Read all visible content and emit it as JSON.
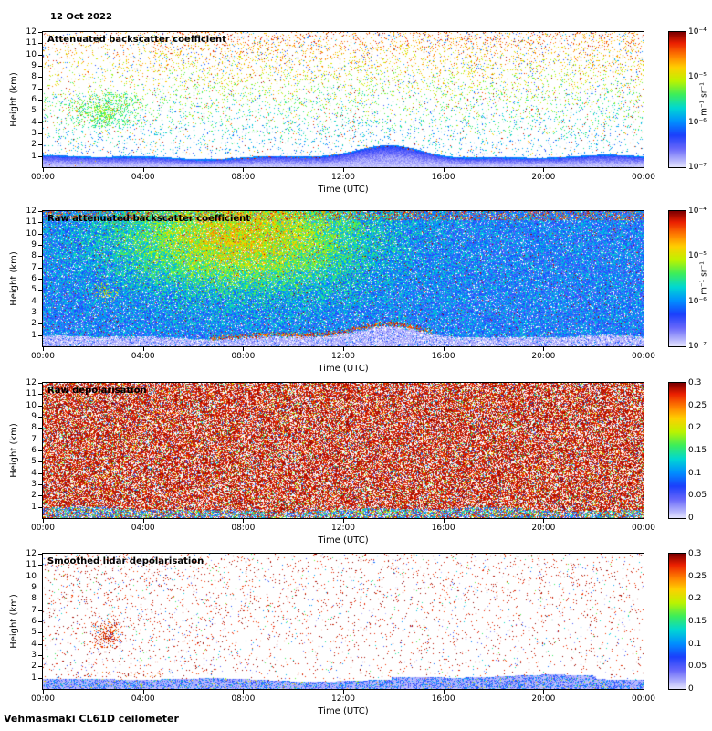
{
  "page": {
    "date": "12 Oct 2022",
    "footer": "Vehmasmaki CL61D ceilometer"
  },
  "chart_data": [
    {
      "type": "heatmap",
      "render_mode": "backscatter",
      "seed": 101,
      "title": "Attenuated backscatter coefficient",
      "xlabel": "Time (UTC)",
      "ylabel": "Height (km)",
      "xlim_hours": [
        0,
        24
      ],
      "ylim_km": [
        0,
        12
      ],
      "x_tick_hours": [
        0,
        4,
        8,
        12,
        16,
        20,
        24
      ],
      "x_tick_labels": [
        "00:00",
        "04:00",
        "08:00",
        "12:00",
        "16:00",
        "20:00",
        "00:00"
      ],
      "y_ticks": [
        1,
        2,
        3,
        4,
        5,
        6,
        7,
        8,
        9,
        10,
        11,
        12
      ],
      "grid": false,
      "colormap": "jet-pale-low",
      "colorbar": {
        "scale": "log",
        "min": 1e-07,
        "max": 0.0001,
        "tick_labels": [
          "10⁻⁴",
          "10⁻⁵",
          "10⁻⁶",
          "10⁻⁷"
        ],
        "unit": "m⁻¹ sr⁻¹"
      },
      "features": [
        "dense blue aerosol layer below ~1 km all day, layer top rising to ~2 km around 13:00-15:00",
        "red/orange speckle along the layer top from ~07:00 to 15:00",
        "green cloud/plume cluster 02:00-03:00 at 4-6 km",
        "sparse warm-coloured noise speckle aloft, density and value increasing with height"
      ]
    },
    {
      "type": "heatmap",
      "render_mode": "raw_backscatter",
      "seed": 202,
      "title": "Raw attenuated backscatter coefficient",
      "xlabel": "Time (UTC)",
      "ylabel": "Height (km)",
      "xlim_hours": [
        0,
        24
      ],
      "ylim_km": [
        0,
        12
      ],
      "x_tick_hours": [
        0,
        4,
        8,
        12,
        16,
        20,
        24
      ],
      "x_tick_labels": [
        "00:00",
        "04:00",
        "08:00",
        "12:00",
        "16:00",
        "20:00",
        "00:00"
      ],
      "y_ticks": [
        1,
        2,
        3,
        4,
        5,
        6,
        7,
        8,
        9,
        10,
        11,
        12
      ],
      "grid": false,
      "colormap": "jet-pale-low",
      "colorbar": {
        "scale": "log",
        "min": 1e-07,
        "max": 0.0001,
        "tick_labels": [
          "10⁻⁴",
          "10⁻⁵",
          "10⁻⁶",
          "10⁻⁷"
        ],
        "unit": "m⁻¹ sr⁻¹"
      },
      "features": [
        "dense blue-green noise at all heights",
        "yellow-orange enhanced noise roughly 04:00-14:00 above 6 km",
        "pale low-signal band below ~1 km",
        "red speckle line along ~1.2 km from 07:00 to 15:00",
        "small yellow cluster near 02:30 at ~5 km"
      ]
    },
    {
      "type": "heatmap",
      "render_mode": "raw_depol",
      "seed": 303,
      "title": "Raw depolarisation",
      "xlabel": "Time (UTC)",
      "ylabel": "Height (km)",
      "xlim_hours": [
        0,
        24
      ],
      "ylim_km": [
        0,
        12
      ],
      "x_tick_hours": [
        0,
        4,
        8,
        12,
        16,
        20,
        24
      ],
      "x_tick_labels": [
        "00:00",
        "04:00",
        "08:00",
        "12:00",
        "16:00",
        "20:00",
        "00:00"
      ],
      "y_ticks": [
        1,
        2,
        3,
        4,
        5,
        6,
        7,
        8,
        9,
        10,
        11,
        12
      ],
      "grid": false,
      "colormap": "jet-pale-low",
      "colorbar": {
        "scale": "linear",
        "min": 0,
        "max": 0.3,
        "tick_labels": [
          "0.3",
          "0.25",
          "0.2",
          "0.15",
          "0.1",
          "0.05",
          "0"
        ]
      },
      "features": [
        "near-saturated dark-red depolarisation noise at nearly all heights and times",
        "low (blue-green-cyan) depolarisation in the surface layer below ~1 km"
      ]
    },
    {
      "type": "heatmap",
      "render_mode": "smooth_depol",
      "seed": 404,
      "title": "Smoothed lidar depolarisation",
      "xlabel": "Time (UTC)",
      "ylabel": "Height (km)",
      "xlim_hours": [
        0,
        24
      ],
      "ylim_km": [
        0,
        12
      ],
      "x_tick_hours": [
        0,
        4,
        8,
        12,
        16,
        20,
        24
      ],
      "x_tick_labels": [
        "00:00",
        "04:00",
        "08:00",
        "12:00",
        "16:00",
        "20:00",
        "00:00"
      ],
      "y_ticks": [
        1,
        2,
        3,
        4,
        5,
        6,
        7,
        8,
        9,
        10,
        11,
        12
      ],
      "grid": false,
      "colormap": "jet-pale-low",
      "colorbar": {
        "scale": "linear",
        "min": 0,
        "max": 0.3,
        "tick_labels": [
          "0.3",
          "0.25",
          "0.2",
          "0.15",
          "0.1",
          "0.05",
          "0"
        ]
      },
      "features": [
        "mostly clear background with sparse dark-red noise dots",
        "low-depolarisation (pale blue/cyan) surface layer below ~1 km",
        "dark-red cluster 02:00-03:00 at 4-5.5 km matching the cloud feature above"
      ]
    }
  ]
}
